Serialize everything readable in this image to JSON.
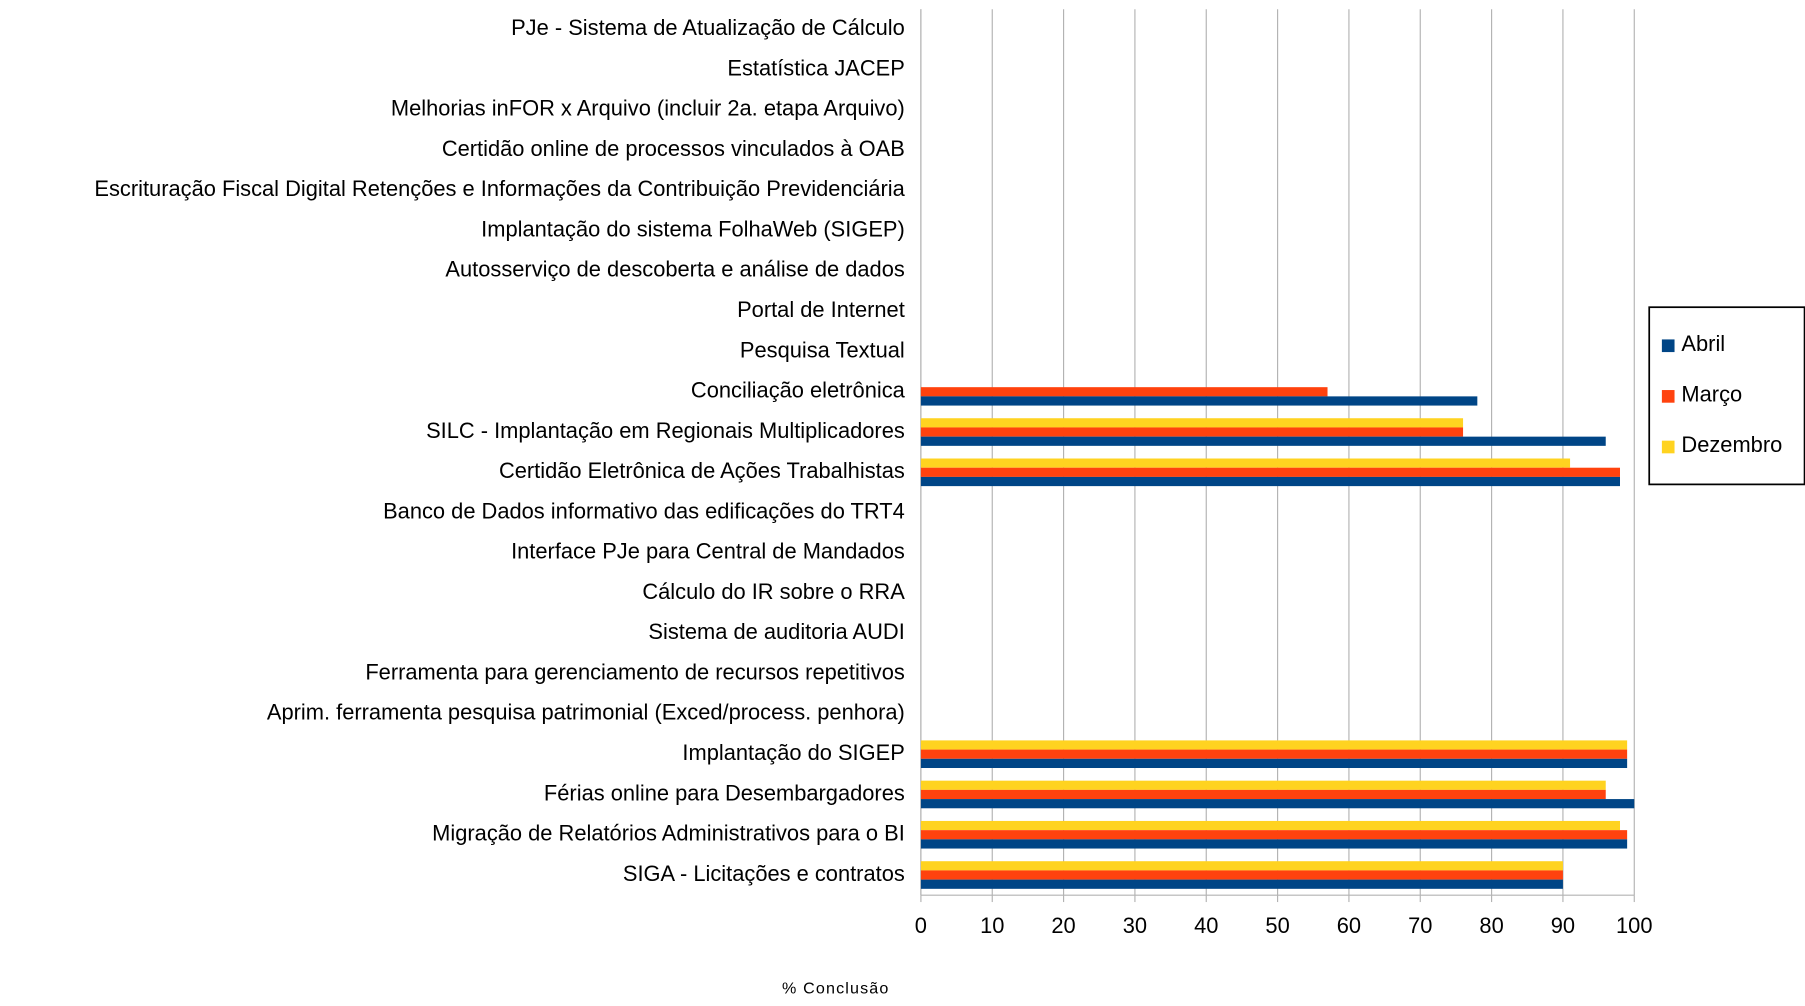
{
  "chart_data": {
    "type": "bar",
    "orientation": "horizontal",
    "x_label": "% Conclusão",
    "categories": [
      "PJe - Sistema de Atualização de Cálculo",
      "Estatística JACEP",
      "Melhorias inFOR x Arquivo (incluir 2a. etapa Arquivo)",
      "Certidão online de processos vinculados à OAB",
      "Escrituração Fiscal Digital Retenções e Informações da Contribuição Previdenciária",
      "Implantação do sistema FolhaWeb (SIGEP)",
      "Autosserviço de descoberta e análise de dados",
      "Portal de Internet",
      "Pesquisa Textual",
      "Conciliação eletrônica",
      "SILC - Implantação em Regionais Multiplicadores",
      "Certidão Eletrônica de Ações Trabalhistas",
      "Banco de Dados informativo das edificações do TRT4",
      "Interface PJe para Central de Mandados",
      "Cálculo do IR sobre o RRA",
      "Sistema de auditoria AUDI",
      "Ferramenta para gerenciamento de recursos repetitivos",
      "Aprim. ferramenta pesquisa patrimonial (Exced/process. penhora)",
      "Implantação do SIGEP",
      "Férias online para Desembargadores",
      "Migração de Relatórios Administrativos para o BI",
      "SIGA - Licitações e contratos"
    ],
    "series": [
      {
        "name": "Abril",
        "color": "#004586",
        "values": [
          null,
          null,
          null,
          null,
          null,
          null,
          null,
          null,
          null,
          78,
          96,
          98,
          null,
          null,
          null,
          null,
          null,
          null,
          99,
          100,
          99,
          90
        ]
      },
      {
        "name": "Março",
        "color": "#ff420e",
        "values": [
          null,
          null,
          null,
          null,
          null,
          null,
          null,
          null,
          null,
          57,
          76,
          98,
          null,
          null,
          null,
          null,
          null,
          null,
          99,
          96,
          99,
          90
        ]
      },
      {
        "name": "Dezembro",
        "color": "#ffd320",
        "values": [
          null,
          null,
          null,
          null,
          null,
          null,
          null,
          null,
          null,
          null,
          76,
          91,
          null,
          null,
          null,
          null,
          null,
          null,
          99,
          96,
          98,
          90
        ]
      }
    ],
    "xlim": [
      0,
      100
    ],
    "xticks": [
      0,
      10,
      20,
      30,
      40,
      50,
      60,
      70,
      80,
      90,
      100
    ],
    "grid": true,
    "legend": "right"
  }
}
